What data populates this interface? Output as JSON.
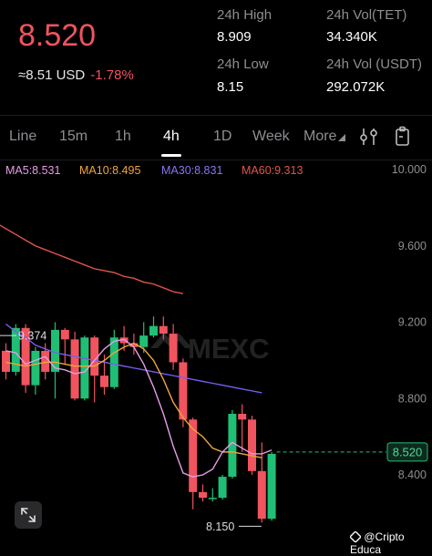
{
  "ticker": {
    "price": "8.520",
    "approx_usd": "≈8.51 USD",
    "change": "-1.78%"
  },
  "stats": {
    "high_label": "24h High",
    "high": "8.909",
    "low_label": "24h Low",
    "low": "8.15",
    "vol_tet_label": "24h Vol(TET)",
    "vol_tet": "34.340K",
    "vol_usdt_label": "24h Vol (USDT)",
    "vol_usdt": "292.072K"
  },
  "tabs": [
    "Line",
    "15m",
    "1h",
    "4h",
    "1D",
    "Week",
    "More"
  ],
  "active_tab": "4h",
  "indicators": {
    "ma5": "MA5:8.531",
    "ma10": "MA10:8.495",
    "ma30": "MA30:8.831",
    "ma60": "MA60:9.313"
  },
  "chart_data": {
    "type": "candlestick",
    "y_ticks": [
      "10.000",
      "9.600",
      "9.200",
      "8.800",
      "8.400"
    ],
    "current_price_tag": "8.520",
    "high_marker": "9.374",
    "low_marker": "8.150",
    "watermark": "MEXC",
    "colors": {
      "up": "#1fbf75",
      "down": "#f0545f",
      "ma5": "#e59de6",
      "ma10": "#f0a53c",
      "ma30": "#7a5cf0",
      "ma60": "#e0554a"
    },
    "candles": [
      {
        "o": 9.05,
        "c": 8.94,
        "h": 9.09,
        "l": 8.9
      },
      {
        "o": 8.94,
        "c": 9.17,
        "h": 9.19,
        "l": 8.92
      },
      {
        "o": 9.17,
        "c": 8.87,
        "h": 9.19,
        "l": 8.83
      },
      {
        "o": 8.87,
        "c": 9.05,
        "h": 9.07,
        "l": 8.82
      },
      {
        "o": 9.05,
        "c": 8.94,
        "h": 9.09,
        "l": 8.9
      },
      {
        "o": 8.94,
        "c": 9.16,
        "h": 9.2,
        "l": 8.8
      },
      {
        "o": 9.16,
        "c": 9.11,
        "h": 9.17,
        "l": 8.98
      },
      {
        "o": 9.11,
        "c": 8.8,
        "h": 9.15,
        "l": 8.79
      },
      {
        "o": 8.8,
        "c": 9.12,
        "h": 9.13,
        "l": 8.79
      },
      {
        "o": 9.12,
        "c": 8.92,
        "h": 9.13,
        "l": 8.78
      },
      {
        "o": 8.92,
        "c": 8.86,
        "h": 9.03,
        "l": 8.82
      },
      {
        "o": 8.86,
        "c": 9.12,
        "h": 9.16,
        "l": 8.85
      },
      {
        "o": 9.12,
        "c": 9.09,
        "h": 9.18,
        "l": 9.05
      },
      {
        "o": 9.09,
        "c": 9.07,
        "h": 9.14,
        "l": 9.03
      },
      {
        "o": 9.07,
        "c": 9.13,
        "h": 9.2,
        "l": 9.04
      },
      {
        "o": 9.13,
        "c": 9.18,
        "h": 9.23,
        "l": 9.12
      },
      {
        "o": 9.18,
        "c": 9.14,
        "h": 9.23,
        "l": 9.11
      },
      {
        "o": 9.14,
        "c": 8.99,
        "h": 9.19,
        "l": 8.95
      },
      {
        "o": 8.99,
        "c": 8.69,
        "h": 9.01,
        "l": 8.65
      },
      {
        "o": 8.69,
        "c": 8.31,
        "h": 8.7,
        "l": 8.22
      },
      {
        "o": 8.31,
        "c": 8.28,
        "h": 8.35,
        "l": 8.26
      },
      {
        "o": 8.28,
        "c": 8.28,
        "h": 8.33,
        "l": 8.26
      },
      {
        "o": 8.28,
        "c": 8.39,
        "h": 8.4,
        "l": 8.27
      },
      {
        "o": 8.39,
        "c": 8.72,
        "h": 8.74,
        "l": 8.38
      },
      {
        "o": 8.72,
        "c": 8.69,
        "h": 8.77,
        "l": 8.52
      },
      {
        "o": 8.69,
        "c": 8.42,
        "h": 8.71,
        "l": 8.4
      },
      {
        "o": 8.42,
        "c": 8.17,
        "h": 8.57,
        "l": 8.15
      },
      {
        "o": 8.17,
        "c": 8.51,
        "h": 8.52,
        "l": 8.16
      }
    ],
    "ma60": [
      9.72,
      9.69,
      9.66,
      9.63,
      9.6,
      9.58,
      9.56,
      9.54,
      9.52,
      9.5,
      9.48,
      9.47,
      9.46,
      9.44,
      9.43,
      9.41,
      9.4,
      9.38,
      9.36,
      9.35
    ],
    "ma30": [
      9.19,
      9.15,
      9.12,
      9.08,
      9.06,
      9.04,
      9.03,
      9.02,
      9.01,
      9.0,
      8.99,
      8.98,
      8.97,
      8.96,
      8.95,
      8.94,
      8.93,
      8.92,
      8.91,
      8.9,
      8.89,
      8.88,
      8.87,
      8.86,
      8.85,
      8.84,
      8.83
    ],
    "ma10": [
      8.99,
      8.98,
      8.97,
      8.98,
      8.99,
      8.99,
      8.98,
      8.97,
      8.97,
      8.97,
      9.0,
      9.04,
      9.07,
      9.09,
      9.06,
      9.0,
      8.9,
      8.78,
      8.7,
      8.64,
      8.6,
      8.54,
      8.52,
      8.52,
      8.51,
      8.5,
      8.49
    ],
    "ma5": [
      9.05,
      9.04,
      8.98,
      9.0,
      9.02,
      8.96,
      8.95,
      8.93,
      8.94,
      9.0,
      9.06,
      9.1,
      9.11,
      9.07,
      8.98,
      8.86,
      8.72,
      8.55,
      8.41,
      8.39,
      8.4,
      8.43,
      8.52,
      8.57,
      8.54,
      8.51,
      8.51,
      8.53
    ]
  },
  "credit": "@Cripto Educa"
}
